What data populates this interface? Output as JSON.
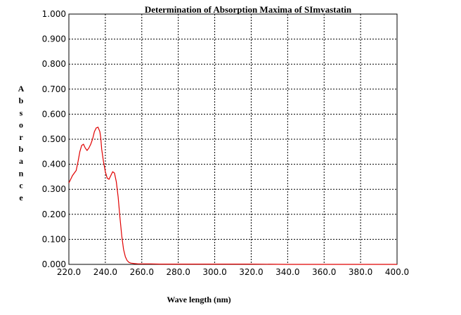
{
  "chart_data": {
    "type": "line",
    "title": "Determination of Absorption Maxima of SImvastatin",
    "xlabel": "Wave length (nm)",
    "ylabel": "Absorbance",
    "xlim": [
      220,
      400
    ],
    "ylim": [
      0,
      1
    ],
    "grid": true,
    "x_ticks": [
      "220.0",
      "240.0",
      "260.0",
      "280.0",
      "300.0",
      "320.0",
      "340.0",
      "360.0",
      "380.0",
      "400.0"
    ],
    "y_ticks": [
      "0.000",
      "0.100",
      "0.200",
      "0.300",
      "0.400",
      "0.500",
      "0.600",
      "0.700",
      "0.800",
      "0.900",
      "1.000"
    ],
    "series": [
      {
        "color": "#e00000",
        "x": [
          220,
          222,
          224,
          225,
          226,
          227,
          228,
          229,
          230,
          231,
          232,
          233,
          234,
          235,
          236,
          237,
          237.5,
          238,
          239,
          240,
          241,
          242,
          243,
          244,
          245,
          246,
          247,
          248,
          249,
          250,
          251,
          252,
          253,
          254,
          256,
          258,
          260,
          265,
          270,
          280,
          290,
          300,
          320,
          340,
          360,
          380,
          400
        ],
        "y": [
          0.325,
          0.355,
          0.375,
          0.41,
          0.45,
          0.475,
          0.48,
          0.465,
          0.455,
          0.465,
          0.48,
          0.5,
          0.53,
          0.545,
          0.548,
          0.53,
          0.505,
          0.46,
          0.41,
          0.37,
          0.345,
          0.34,
          0.355,
          0.37,
          0.365,
          0.33,
          0.27,
          0.19,
          0.115,
          0.06,
          0.03,
          0.015,
          0.008,
          0.005,
          0.003,
          0.002,
          0.002,
          0.002,
          0.001,
          0.001,
          0.001,
          0.001,
          0.001,
          0.0,
          0.0,
          0.0,
          0.0
        ]
      }
    ]
  }
}
